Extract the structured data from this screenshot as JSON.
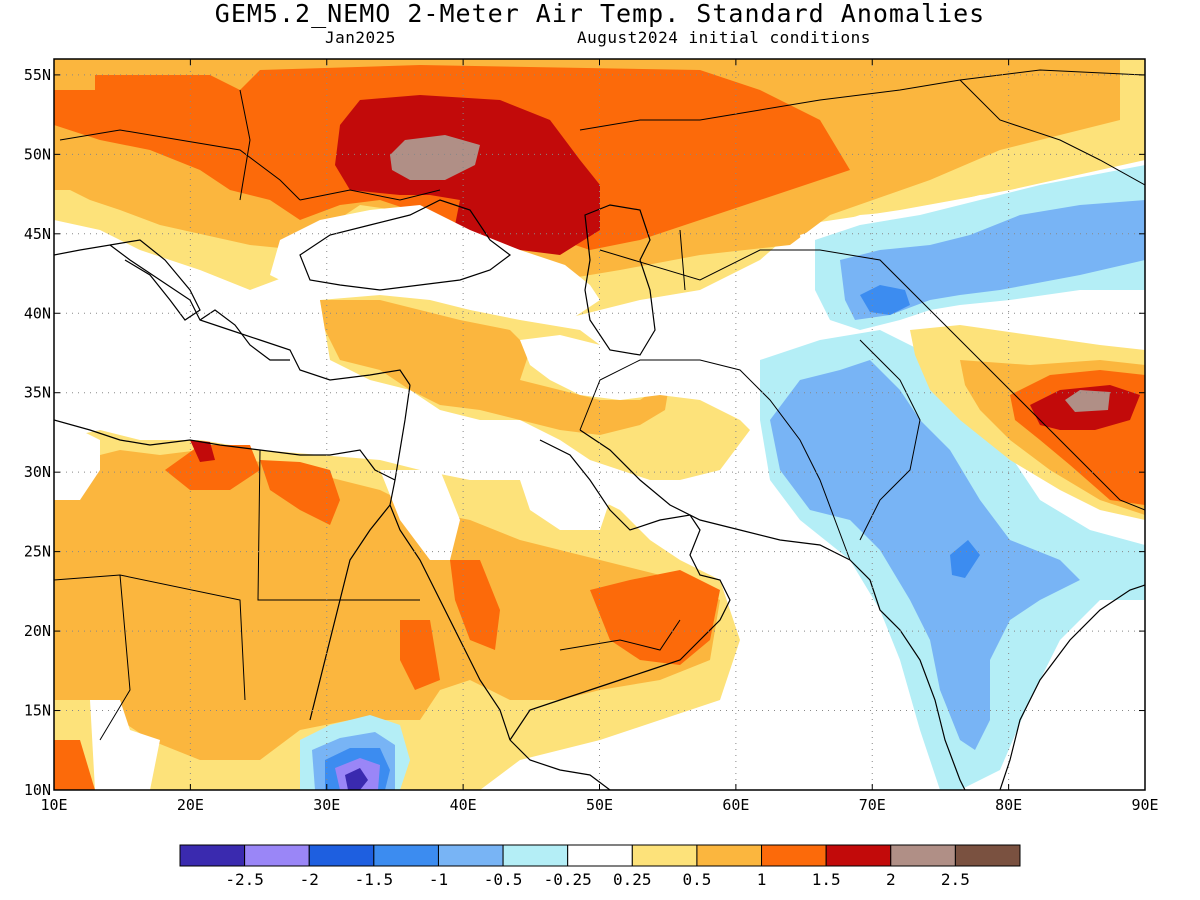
{
  "title": "GEM5.2_NEMO 2-Meter Air Temp. Standard Anomalies",
  "subtitle_left": "Jan2025",
  "subtitle_right": "August2024 initial conditions",
  "map": {
    "lon_range": [
      10,
      90
    ],
    "lat_range": [
      10,
      56
    ],
    "grid": "dotted",
    "lon_ticks": [
      "10E",
      "20E",
      "30E",
      "40E",
      "50E",
      "60E",
      "70E",
      "80E",
      "90E"
    ],
    "lat_ticks": [
      "10N",
      "15N",
      "20N",
      "25N",
      "30N",
      "35N",
      "40N",
      "45N",
      "50N",
      "55N"
    ]
  },
  "colorbar": {
    "colors": [
      "#3a2aaf",
      "#9a86f7",
      "#1e5fe0",
      "#3c8cf0",
      "#78b4f5",
      "#b4eef6",
      "#ffffff",
      "#fde27a",
      "#fbb63e",
      "#fc6a0a",
      "#c20a0a",
      "#b08f86",
      "#7a5140"
    ],
    "labels": [
      "-2.5",
      "-2",
      "-1.5",
      "-1",
      "-0.5",
      "-0.25",
      "0.25",
      "0.5",
      "1",
      "1.5",
      "2",
      "2.5"
    ]
  }
}
